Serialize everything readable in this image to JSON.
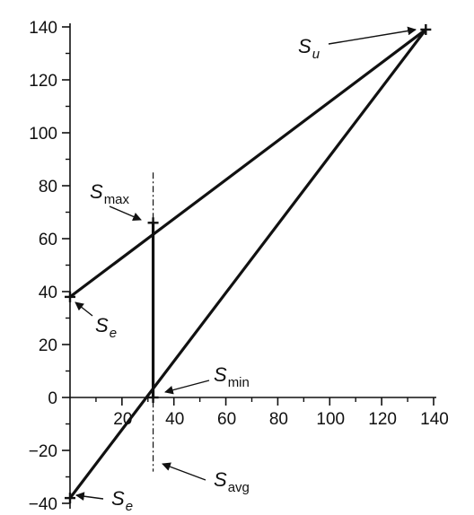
{
  "chart_data": {
    "type": "line",
    "title": "",
    "xlabel": "",
    "ylabel": "",
    "xlim": [
      0,
      140
    ],
    "ylim": [
      -40,
      140
    ],
    "x_ticks": [
      20,
      40,
      60,
      80,
      100,
      120,
      140
    ],
    "y_ticks": [
      140,
      120,
      100,
      80,
      60,
      40,
      20,
      0,
      -20,
      -40
    ],
    "grid": false,
    "series": [
      {
        "points": [
          [
            0,
            38
          ],
          [
            137,
            139
          ]
        ]
      },
      {
        "points": [
          [
            0,
            -38
          ],
          [
            137,
            139
          ]
        ]
      },
      {
        "points": [
          [
            32,
            0
          ],
          [
            32,
            66
          ]
        ]
      }
    ],
    "markers": [
      {
        "x": 137,
        "y": 139
      },
      {
        "x": 32,
        "y": 66
      },
      {
        "x": 0,
        "y": 38
      },
      {
        "x": 32,
        "y": 0
      },
      {
        "x": 0,
        "y": -38
      }
    ],
    "savg_line_x": 32,
    "annotations": [
      {
        "base": "S",
        "sub": "u",
        "italic_sub": true,
        "point": [
          137,
          139
        ]
      },
      {
        "base": "S",
        "sub": "max",
        "italic_sub": false,
        "point": [
          32,
          66
        ]
      },
      {
        "base": "S",
        "sub": "e",
        "italic_sub": true,
        "point": [
          0,
          38
        ]
      },
      {
        "base": "S",
        "sub": "min",
        "italic_sub": false,
        "point": [
          32,
          0
        ]
      },
      {
        "base": "S",
        "sub": "avg",
        "italic_sub": false,
        "point": [
          32,
          -27
        ]
      },
      {
        "base": "S",
        "sub": "e",
        "italic_sub": true,
        "point": [
          0,
          -38
        ]
      }
    ]
  }
}
